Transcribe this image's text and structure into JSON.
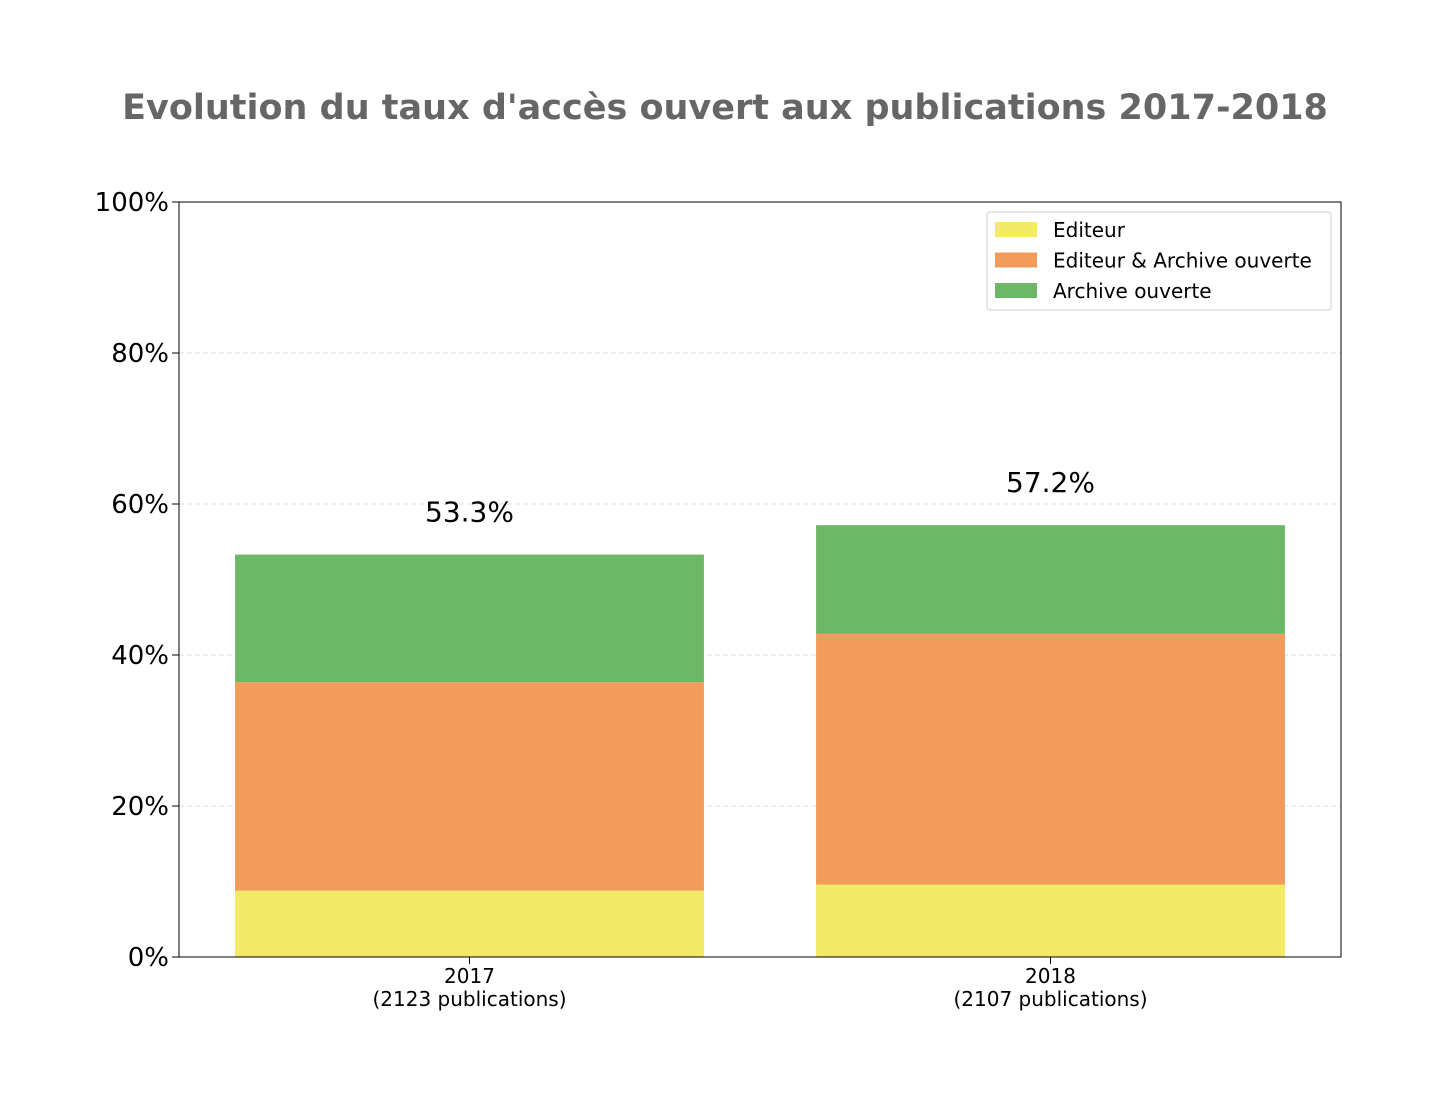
{
  "chart_data": {
    "type": "bar",
    "stacked": true,
    "title": "Evolution du taux d'accès ouvert aux publications 2017-2018",
    "categories": [
      {
        "year": "2017",
        "subtitle": "(2123 publications)"
      },
      {
        "year": "2018",
        "subtitle": "(2107 publications)"
      }
    ],
    "series": [
      {
        "name": "Editeur",
        "color": "#f2e964",
        "values": [
          8.8,
          9.6
        ]
      },
      {
        "name": "Editeur & Archive ouverte",
        "color": "#f29b5a",
        "values": [
          27.6,
          33.2
        ]
      },
      {
        "name": "Archive ouverte",
        "color": "#6db867",
        "values": [
          16.9,
          14.4
        ]
      }
    ],
    "totals": [
      "53.3%",
      "57.2%"
    ],
    "ylim": [
      0,
      100
    ],
    "yticks": [
      0,
      20,
      40,
      60,
      80,
      100
    ],
    "ytick_labels": [
      "0%",
      "20%",
      "40%",
      "60%",
      "80%",
      "100%"
    ],
    "grid": "horizontal dashed",
    "legend_position": "top-right"
  }
}
